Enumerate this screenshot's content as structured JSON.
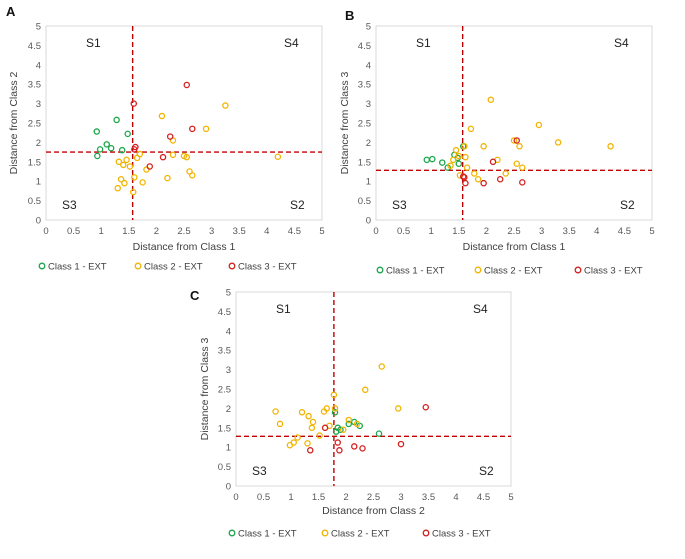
{
  "chart_data": [
    {
      "type": "scatter",
      "panel": "A",
      "xlabel": "Distance from Class 1",
      "ylabel": "Distance from Class 2",
      "xlim": [
        0,
        5
      ],
      "ylim": [
        0,
        5
      ],
      "xticks": [
        0,
        0.5,
        1,
        1.5,
        2,
        2.5,
        3,
        3.5,
        4,
        4.5,
        5
      ],
      "yticks": [
        0,
        0.5,
        1,
        1.5,
        2,
        2.5,
        3,
        3.5,
        4,
        4.5,
        5
      ],
      "threshold_x": 1.57,
      "threshold_y": 1.75,
      "quadrant_labels": {
        "top_left": "S1",
        "top_right": "S4",
        "bottom_left": "S3",
        "bottom_right": "S2"
      },
      "series": [
        {
          "name": "Class 1 - EXT",
          "color": "#1aa64b",
          "points": [
            [
              0.92,
              2.28
            ],
            [
              1.1,
              1.95
            ],
            [
              1.28,
              2.58
            ],
            [
              1.48,
              2.22
            ],
            [
              0.98,
              1.82
            ],
            [
              1.18,
              1.85
            ],
            [
              1.38,
              1.8
            ],
            [
              0.93,
              1.65
            ]
          ]
        },
        {
          "name": "Class 2 - EXT",
          "color": "#f2b400",
          "points": [
            [
              1.32,
              1.5
            ],
            [
              1.4,
              1.42
            ],
            [
              1.46,
              1.55
            ],
            [
              1.52,
              1.38
            ],
            [
              1.36,
              1.05
            ],
            [
              1.42,
              0.95
            ],
            [
              1.3,
              0.82
            ],
            [
              1.58,
              0.72
            ],
            [
              1.6,
              1.1
            ],
            [
              1.7,
              1.7
            ],
            [
              1.65,
              1.6
            ],
            [
              1.75,
              0.97
            ],
            [
              1.82,
              1.3
            ],
            [
              2.1,
              2.68
            ],
            [
              2.2,
              1.08
            ],
            [
              2.3,
              1.68
            ],
            [
              2.5,
              1.65
            ],
            [
              2.55,
              1.62
            ],
            [
              2.6,
              1.25
            ],
            [
              2.65,
              1.15
            ],
            [
              2.9,
              2.35
            ],
            [
              3.25,
              2.95
            ],
            [
              4.2,
              1.63
            ],
            [
              2.3,
              2.05
            ]
          ]
        },
        {
          "name": "Class 3 - EXT",
          "color": "#d32020",
          "points": [
            [
              1.59,
              3.0
            ],
            [
              1.62,
              1.88
            ],
            [
              1.6,
              1.82
            ],
            [
              1.88,
              1.38
            ],
            [
              2.12,
              1.62
            ],
            [
              2.25,
              2.15
            ],
            [
              2.55,
              3.48
            ],
            [
              2.65,
              2.35
            ]
          ]
        }
      ]
    },
    {
      "type": "scatter",
      "panel": "B",
      "xlabel": "Distance from Class 1",
      "ylabel": "Distance from Class 3",
      "xlim": [
        0,
        5
      ],
      "ylim": [
        0,
        5
      ],
      "xticks": [
        0,
        0.5,
        1,
        1.5,
        2,
        2.5,
        3,
        3.5,
        4,
        4.5,
        5
      ],
      "yticks": [
        0,
        0.5,
        1,
        1.5,
        2,
        2.5,
        3,
        3.5,
        4,
        4.5,
        5
      ],
      "threshold_x": 1.57,
      "threshold_y": 1.28,
      "quadrant_labels": {
        "top_left": "S1",
        "top_right": "S4",
        "bottom_left": "S3",
        "bottom_right": "S2"
      },
      "series": [
        {
          "name": "Class 1 - EXT",
          "color": "#1aa64b",
          "points": [
            [
              0.92,
              1.55
            ],
            [
              1.02,
              1.57
            ],
            [
              1.2,
              1.48
            ],
            [
              1.3,
              1.35
            ],
            [
              1.42,
              1.68
            ],
            [
              1.48,
              1.6
            ],
            [
              1.58,
              1.9
            ],
            [
              1.5,
              1.45
            ]
          ]
        },
        {
          "name": "Class 2 - EXT",
          "color": "#f2b400",
          "points": [
            [
              1.35,
              1.4
            ],
            [
              1.4,
              1.55
            ],
            [
              1.45,
              1.8
            ],
            [
              1.5,
              1.65
            ],
            [
              1.52,
              1.15
            ],
            [
              1.6,
              1.9
            ],
            [
              1.62,
              1.62
            ],
            [
              1.65,
              1.35
            ],
            [
              1.72,
              2.35
            ],
            [
              1.78,
              1.2
            ],
            [
              1.85,
              1.05
            ],
            [
              2.08,
              3.1
            ],
            [
              2.2,
              1.55
            ],
            [
              2.35,
              1.2
            ],
            [
              2.5,
              2.05
            ],
            [
              2.55,
              1.45
            ],
            [
              2.6,
              1.9
            ],
            [
              2.65,
              1.35
            ],
            [
              2.95,
              2.45
            ],
            [
              3.3,
              2.0
            ],
            [
              4.25,
              1.9
            ],
            [
              1.95,
              1.9
            ]
          ]
        },
        {
          "name": "Class 3 - EXT",
          "color": "#d32020",
          "points": [
            [
              1.58,
              1.12
            ],
            [
              1.6,
              1.1
            ],
            [
              1.62,
              0.95
            ],
            [
              1.95,
              0.95
            ],
            [
              2.12,
              1.5
            ],
            [
              2.25,
              1.05
            ],
            [
              2.55,
              2.05
            ],
            [
              2.65,
              0.97
            ]
          ]
        }
      ]
    },
    {
      "type": "scatter",
      "panel": "C",
      "xlabel": "Distance from Class 2",
      "ylabel": "Distance from Class 3",
      "xlim": [
        0,
        5
      ],
      "ylim": [
        0,
        5
      ],
      "xticks": [
        0,
        0.5,
        1,
        1.5,
        2,
        2.5,
        3,
        3.5,
        4,
        4.5,
        5
      ],
      "yticks": [
        0,
        0.5,
        1,
        1.5,
        2,
        2.5,
        3,
        3.5,
        4,
        4.5,
        5
      ],
      "threshold_x": 1.78,
      "threshold_y": 1.28,
      "quadrant_labels": {
        "top_left": "S1",
        "top_right": "S4",
        "bottom_left": "S3",
        "bottom_right": "S2"
      },
      "series": [
        {
          "name": "Class 1 - EXT",
          "color": "#1aa64b",
          "points": [
            [
              1.8,
              1.9
            ],
            [
              1.85,
              1.5
            ],
            [
              1.82,
              1.4
            ],
            [
              1.9,
              1.45
            ],
            [
              2.05,
              1.6
            ],
            [
              2.15,
              1.65
            ],
            [
              2.25,
              1.55
            ],
            [
              2.6,
              1.35
            ]
          ]
        },
        {
          "name": "Class 2 - EXT",
          "color": "#f2b400",
          "points": [
            [
              0.72,
              1.92
            ],
            [
              0.8,
              1.6
            ],
            [
              0.98,
              1.05
            ],
            [
              1.05,
              1.12
            ],
            [
              1.12,
              1.25
            ],
            [
              1.2,
              1.9
            ],
            [
              1.32,
              1.8
            ],
            [
              1.38,
              1.5
            ],
            [
              1.4,
              1.65
            ],
            [
              1.52,
              1.3
            ],
            [
              1.6,
              1.92
            ],
            [
              1.65,
              2.0
            ],
            [
              1.7,
              1.55
            ],
            [
              1.78,
              2.35
            ],
            [
              1.8,
              2.0
            ],
            [
              1.95,
              1.45
            ],
            [
              2.05,
              1.7
            ],
            [
              2.2,
              1.6
            ],
            [
              2.35,
              2.48
            ],
            [
              2.65,
              3.08
            ],
            [
              2.95,
              2.0
            ],
            [
              1.3,
              1.1
            ]
          ]
        },
        {
          "name": "Class 3 - EXT",
          "color": "#d32020",
          "points": [
            [
              1.35,
              0.92
            ],
            [
              1.62,
              1.5
            ],
            [
              1.85,
              1.12
            ],
            [
              1.88,
              0.92
            ],
            [
              2.15,
              1.02
            ],
            [
              2.3,
              0.97
            ],
            [
              3.0,
              1.08
            ],
            [
              3.45,
              2.03
            ]
          ]
        }
      ]
    }
  ]
}
